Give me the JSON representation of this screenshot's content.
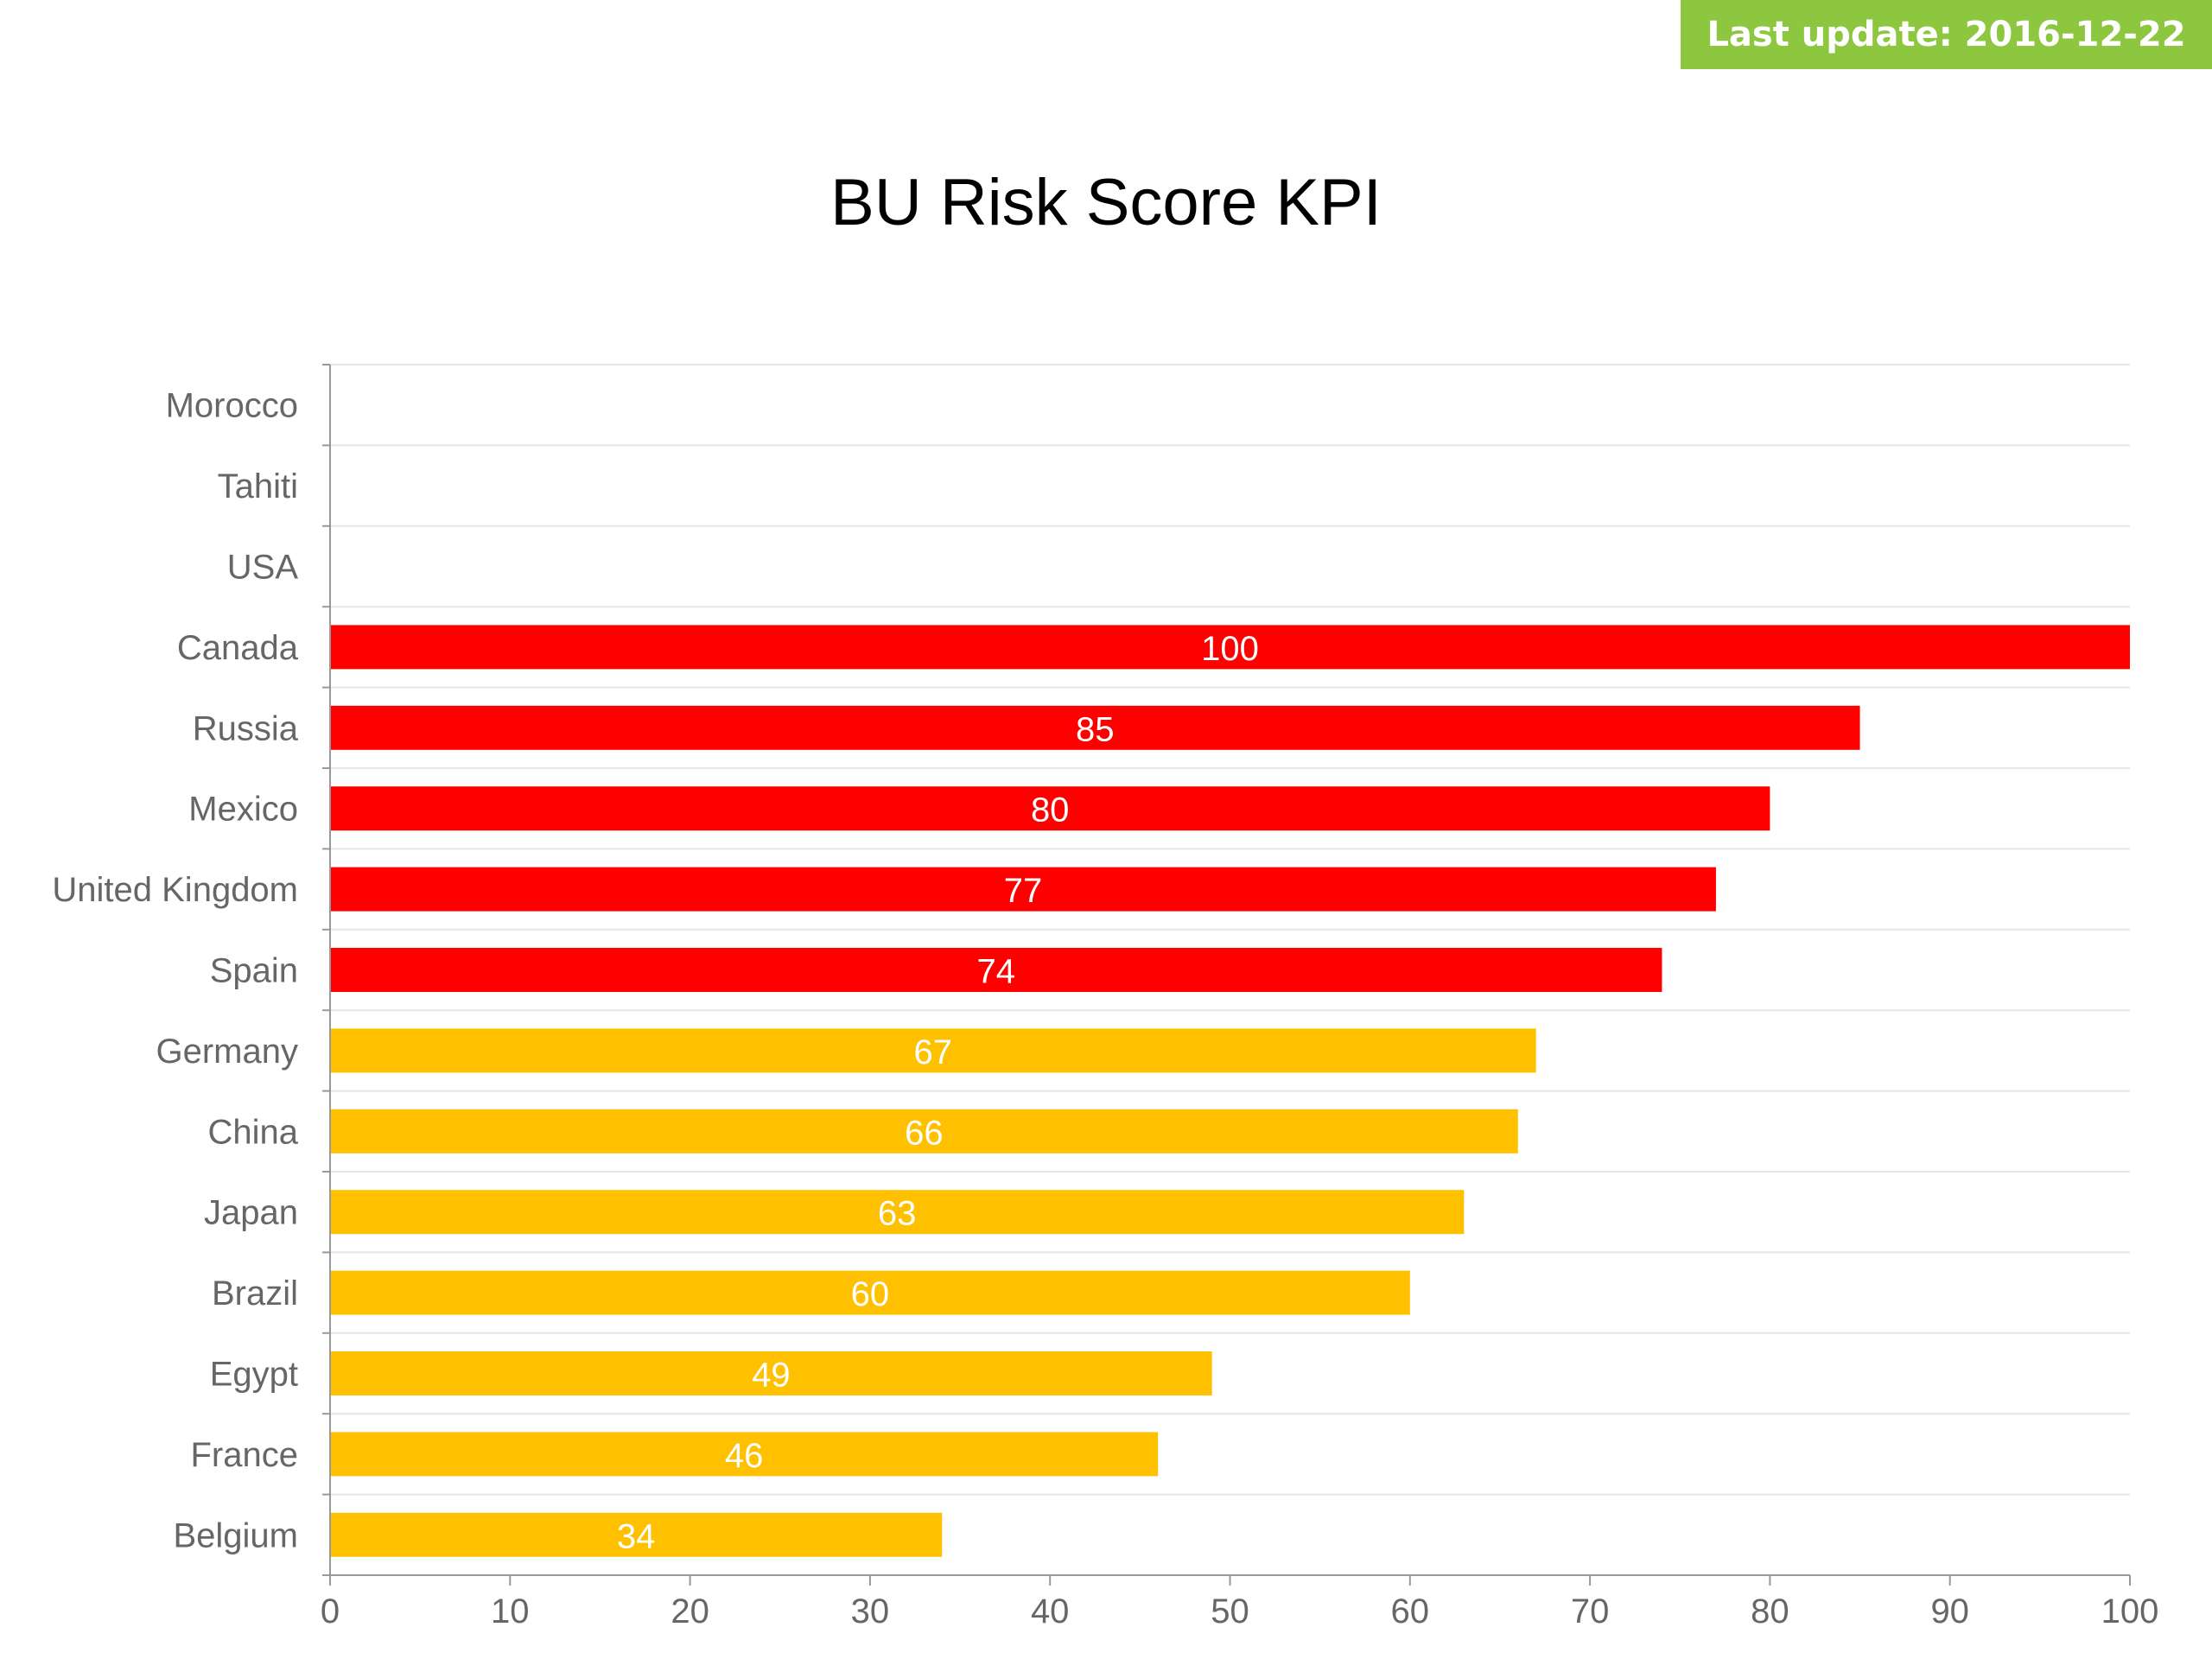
{
  "badge": {
    "label": "Last update: 2016-12-22",
    "color": "#8dc63f"
  },
  "chart_data": {
    "type": "bar",
    "orientation": "horizontal",
    "title": "BU Risk Score KPI",
    "xlabel": "",
    "ylabel": "",
    "xlim": [
      0,
      100
    ],
    "x_ticks": [
      0,
      10,
      20,
      30,
      40,
      50,
      60,
      70,
      80,
      90,
      100
    ],
    "grid": true,
    "legend": "none",
    "categories": [
      "Morocco",
      "Tahiti",
      "USA",
      "Canada",
      "Russia",
      "Mexico",
      "United Kingdom",
      "Spain",
      "Germany",
      "China",
      "Japan",
      "Brazil",
      "Egypt",
      "France",
      "Belgium"
    ],
    "values": [
      null,
      null,
      null,
      100,
      85,
      80,
      77,
      74,
      67,
      66,
      63,
      60,
      49,
      46,
      34
    ],
    "data_labels": [
      "",
      "",
      "",
      "100",
      "85",
      "80",
      "77",
      "74",
      "67",
      "66",
      "63",
      "60",
      "49",
      "46",
      "34"
    ],
    "bar_colors": [
      "#ff0000",
      "#ff0000",
      "#ff0000",
      "#ff0000",
      "#ff0000",
      "#ff0000",
      "#ff0000",
      "#ff0000",
      "#ffc000",
      "#ffc000",
      "#ffc000",
      "#ffc000",
      "#ffc000",
      "#ffc000",
      "#ffc000"
    ],
    "colors": {
      "high": "#ff0000",
      "medium": "#ffc000",
      "label_text": "#ffffff",
      "axis_text": "#666666",
      "grid": "#e6e6e6",
      "axis": "#999999"
    }
  }
}
